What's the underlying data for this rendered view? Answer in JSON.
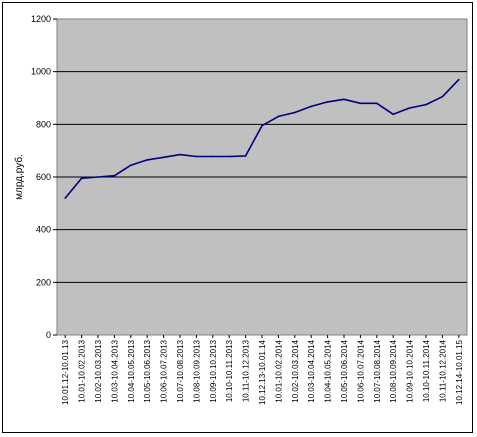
{
  "chart_data": {
    "type": "line",
    "title": "",
    "xlabel": "",
    "ylabel": "млрд.руб.",
    "ylim": [
      0,
      1200
    ],
    "yticks": [
      0,
      200,
      400,
      600,
      800,
      1000,
      1200
    ],
    "grid": true,
    "legend": "none",
    "colors": {
      "plot_background": "#c0c0c0",
      "line": "#000080",
      "grid": "#000000"
    },
    "categories": [
      "10.01.12-10.01.13",
      "10.01-10.02.2013",
      "10.02-10.03.2013",
      "10.03-10.04.2013",
      "10.04-10.05.2013",
      "10.05-10.06.2013",
      "10.06-10.07.2013",
      "10.07-10.08.2013",
      "10.08-10.09.2013",
      "10.09-10.10.2013",
      "10.10-10.11.2013",
      "10.11-10.12.2013",
      "10.12.13-10.01.14",
      "10.01-10.02.2014",
      "10.02-10.03.2014",
      "10.03-10.04.2014",
      "10.04-10.05.2014",
      "10.05-10.06.2014",
      "10.06-10.07.2014",
      "10.07-10.08.2014",
      "10.08-10.09.2014",
      "10.09-10.10.2014",
      "10.10-10.11.2014",
      "10.11-10.12.2014",
      "10.12.14-10.01.15"
    ],
    "series": [
      {
        "values": [
          520,
          595,
          600,
          605,
          645,
          665,
          675,
          685,
          678,
          678,
          678,
          680,
          795,
          830,
          845,
          868,
          885,
          895,
          880,
          880,
          838,
          862,
          875,
          905,
          970
        ]
      }
    ]
  }
}
